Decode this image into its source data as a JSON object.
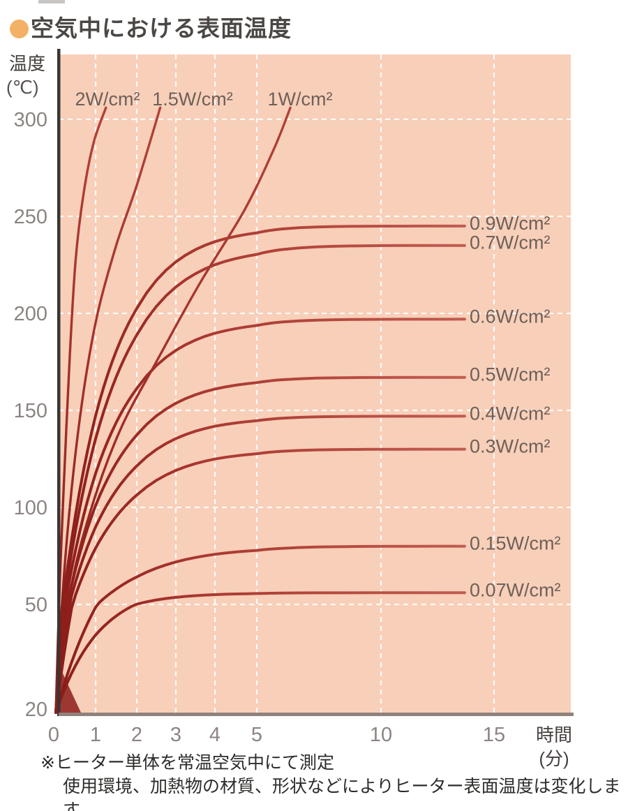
{
  "title": {
    "bullet_icon": "●",
    "text": "空気中における表面温度"
  },
  "y_axis": {
    "unit_line1": "温度",
    "unit_line2": "(℃)",
    "ticks": [
      "300",
      "250",
      "200",
      "150",
      "100",
      "50",
      "20"
    ]
  },
  "x_axis": {
    "ticks": [
      "0",
      "1",
      "2",
      "3",
      "4",
      "5",
      "10",
      "15"
    ],
    "unit_line1": "時間",
    "unit_line2": "(分)"
  },
  "footnote": {
    "line1": "※ヒーター単体を常温空気中にて測定",
    "line2": "使用環境、加熱物の材質、形状などによりヒーター表面温度は変化します。"
  },
  "colors": {
    "plot_background": "#f8cfb9",
    "grid": "#ffffff",
    "curve_dark": "#8c1d19",
    "curve_mid": "#a93830",
    "curve_light": "#c25b50",
    "axis_y_line": "#3a3433",
    "axis_x_line": "#8f827b",
    "tick_text": "#8c8482",
    "series_label_text": "#6d6059",
    "title_text": "#4b4745",
    "bullet": "#f3b166",
    "footnote_text": "#2e2c2a",
    "unit_text": "#44403e"
  },
  "chart_data": {
    "type": "line",
    "title": "空気中における表面温度",
    "xlabel": "時間(分)",
    "ylabel": "温度(℃)",
    "x_tick_values": [
      0,
      1,
      2,
      3,
      4,
      5,
      10,
      15
    ],
    "y_tick_values": [
      300,
      250,
      200,
      150,
      100,
      50,
      20
    ],
    "x_axis_note": "x scale is compressed beyond 5 minutes",
    "ambient_start_c": 20,
    "grid": true,
    "legend_position": "on-curve labels (top for 2/1.5/1 W, right for the rest)",
    "series": [
      {
        "label": "2W/cm²",
        "power_w_per_cm2": 2,
        "plateau_c": null,
        "label_placement": "top",
        "points": [
          [
            0,
            20
          ],
          [
            0.1,
            62
          ],
          [
            0.22,
            120
          ],
          [
            0.35,
            178
          ],
          [
            0.5,
            228
          ],
          [
            0.7,
            262
          ],
          [
            0.95,
            288
          ],
          [
            1.25,
            306
          ]
        ]
      },
      {
        "label": "1.5W/cm²",
        "power_w_per_cm2": 1.5,
        "plateau_c": null,
        "label_placement": "top",
        "points": [
          [
            0,
            20
          ],
          [
            0.18,
            58
          ],
          [
            0.4,
            110
          ],
          [
            0.7,
            160
          ],
          [
            1.05,
            200
          ],
          [
            1.5,
            235
          ],
          [
            2.0,
            266
          ],
          [
            2.6,
            306
          ]
        ]
      },
      {
        "label": "1W/cm²",
        "power_w_per_cm2": 1,
        "plateau_c": null,
        "label_placement": "top",
        "points": [
          [
            0,
            20
          ],
          [
            0.35,
            55
          ],
          [
            0.9,
            100
          ],
          [
            1.6,
            140
          ],
          [
            2.5,
            175
          ],
          [
            3.6,
            215
          ],
          [
            4.7,
            253
          ],
          [
            5.7,
            285
          ],
          [
            6.35,
            306
          ]
        ]
      },
      {
        "label": "0.9W/cm²",
        "power_w_per_cm2": 0.9,
        "plateau_c": 245,
        "tau_min": 1.2,
        "t_end_min": 13.7,
        "label_placement": "right"
      },
      {
        "label": "0.7W/cm²",
        "power_w_per_cm2": 0.7,
        "plateau_c": 235,
        "tau_min": 1.3,
        "t_end_min": 13.7,
        "label_placement": "right"
      },
      {
        "label": "0.6W/cm²",
        "power_w_per_cm2": 0.6,
        "plateau_c": 197,
        "tau_min": 1.25,
        "t_end_min": 13.7,
        "label_placement": "right"
      },
      {
        "label": "0.5W/cm²",
        "power_w_per_cm2": 0.5,
        "plateau_c": 167,
        "tau_min": 1.25,
        "t_end_min": 13.7,
        "label_placement": "right"
      },
      {
        "label": "0.4W/cm²",
        "power_w_per_cm2": 0.4,
        "plateau_c": 147,
        "tau_min": 1.25,
        "t_end_min": 13.7,
        "label_placement": "right"
      },
      {
        "label": "0.3W/cm²",
        "power_w_per_cm2": 0.3,
        "plateau_c": 130,
        "tau_min": 1.3,
        "t_end_min": 13.7,
        "label_placement": "right"
      },
      {
        "label": "0.15W/cm²",
        "power_w_per_cm2": 0.15,
        "plateau_c": 80,
        "tau_min": 1.5,
        "t_end_min": 13.7,
        "label_placement": "right"
      },
      {
        "label": "0.07W/cm²",
        "power_w_per_cm2": 0.07,
        "plateau_c": 56,
        "tau_min": 1.1,
        "t_end_min": 13.7,
        "label_placement": "right"
      }
    ]
  }
}
